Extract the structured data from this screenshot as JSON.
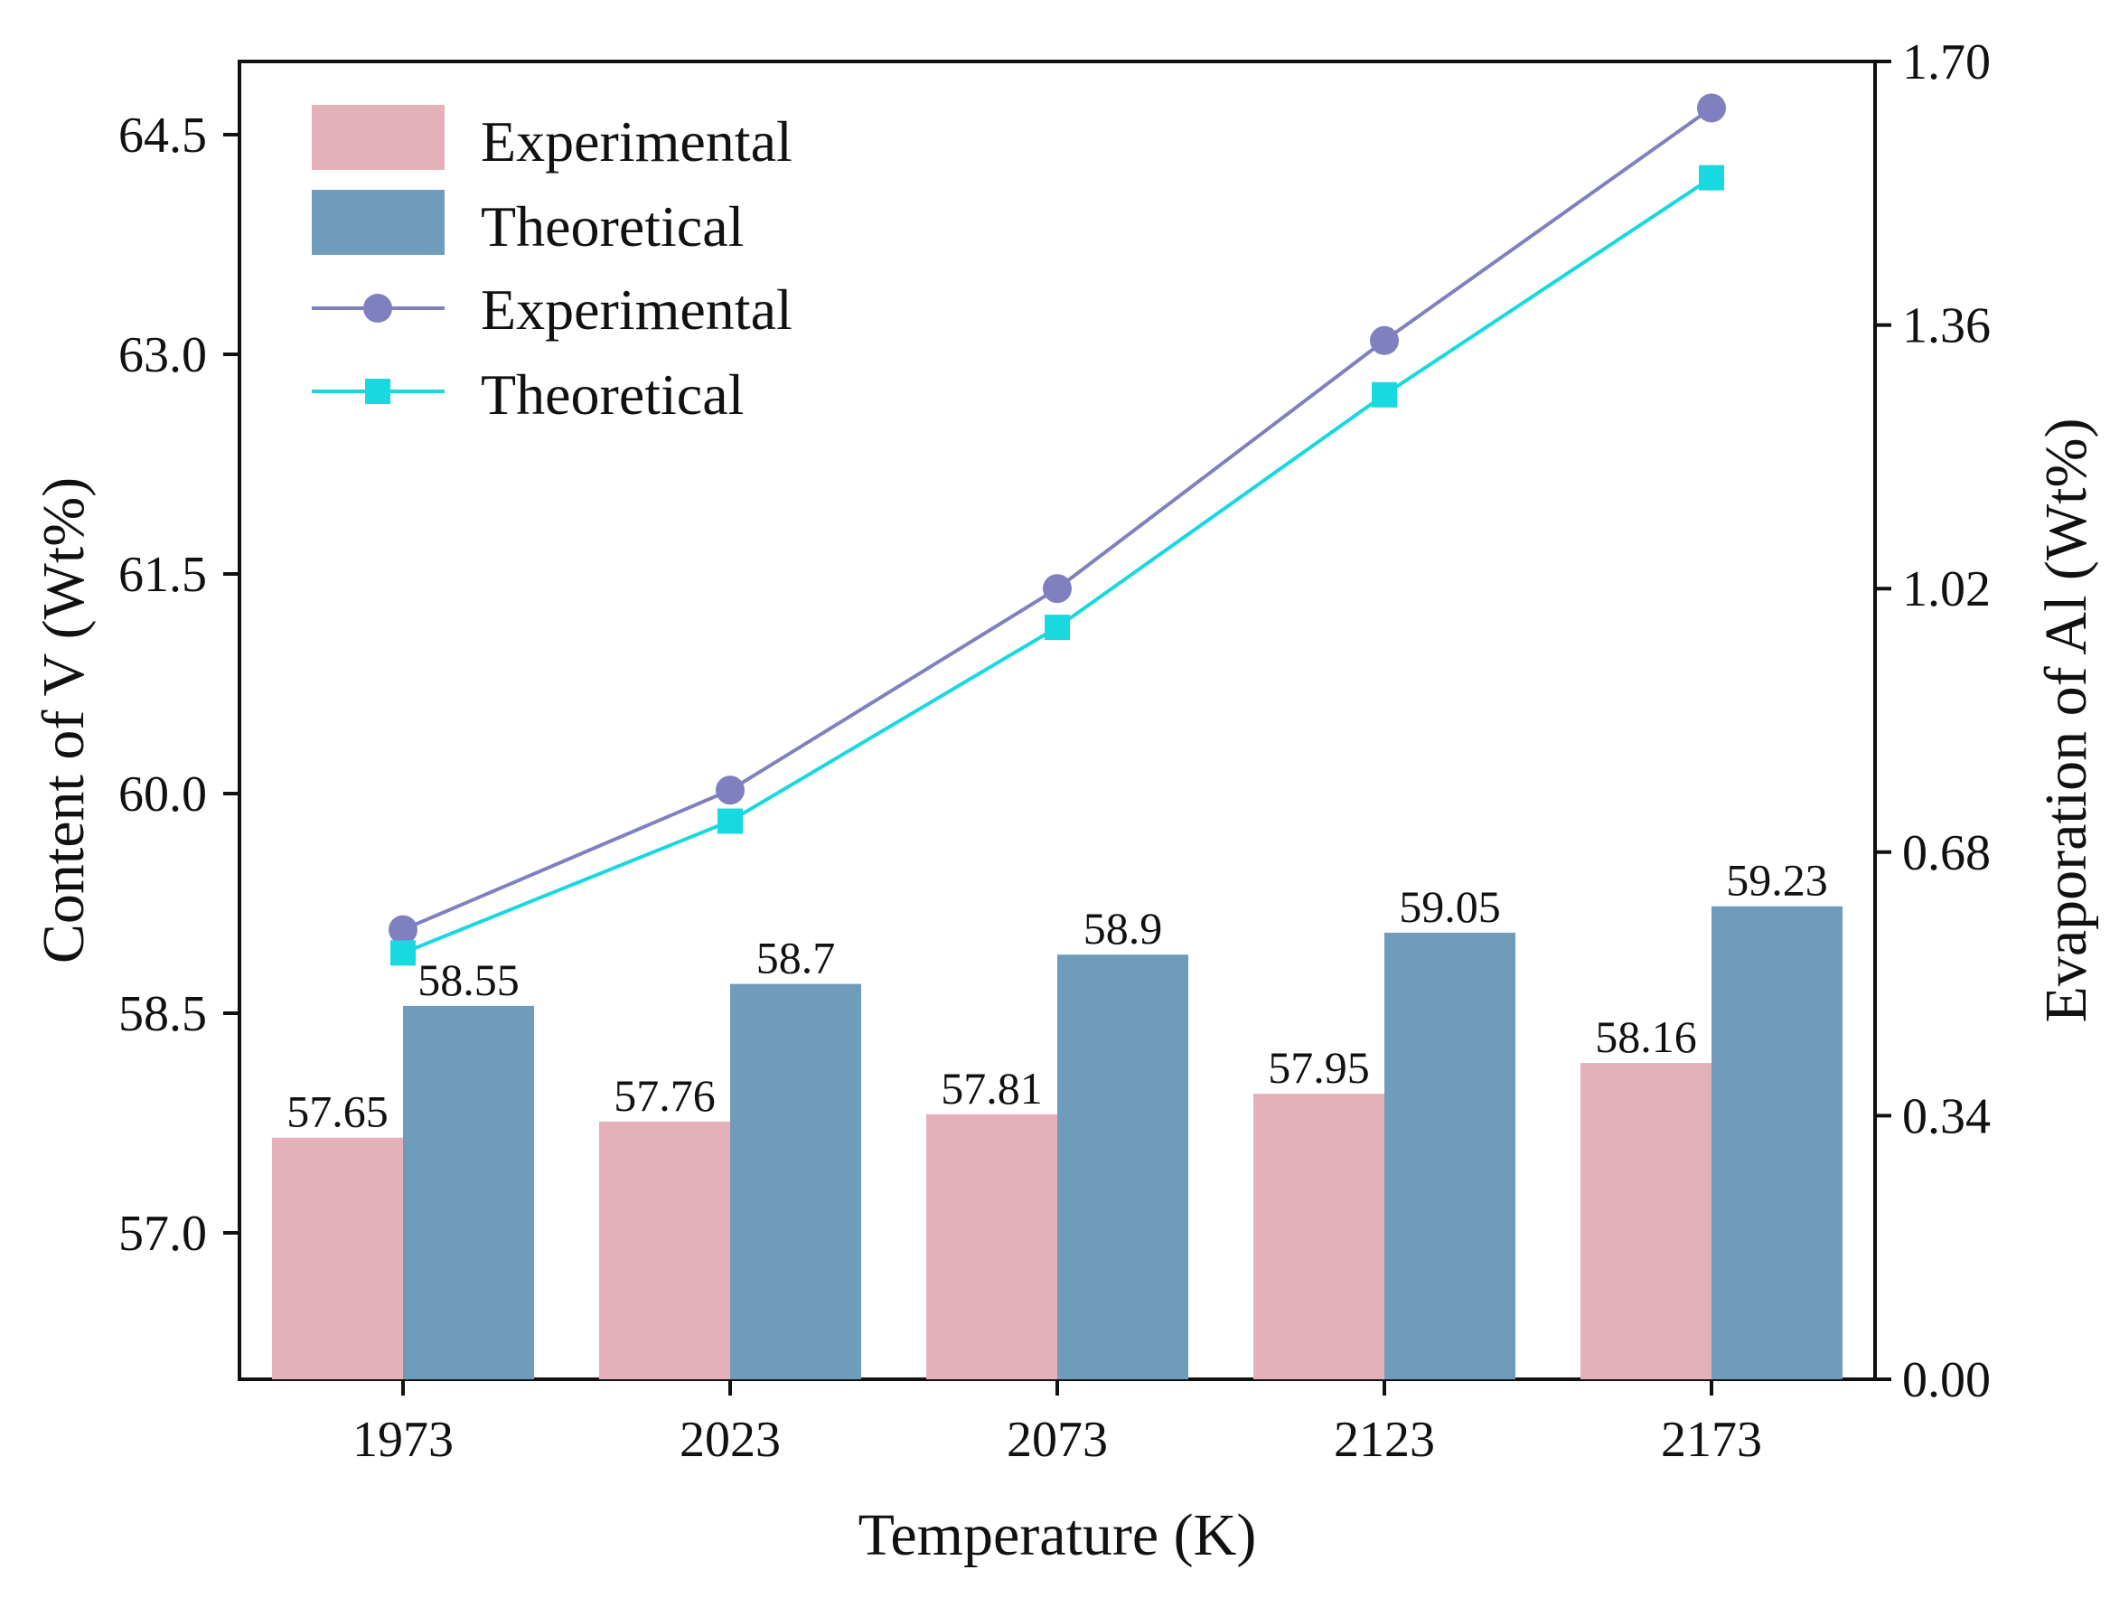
{
  "chart_data": {
    "type": "bar+line",
    "xlabel": "Temperature (K)",
    "ylabel_left": "Content of  V (Wt%)",
    "ylabel_right": "Evaporation of  Al (Wt%)",
    "categories": [
      "1973",
      "2023",
      "2073",
      "2123",
      "2173"
    ],
    "left_axis": {
      "ylim": [
        56.0,
        65.0
      ],
      "ticks": [
        57.0,
        58.5,
        60.0,
        61.5,
        63.0,
        64.5
      ],
      "tick_labels": [
        "57.0",
        "58.5",
        "60.0",
        "61.5",
        "63.0",
        "64.5"
      ]
    },
    "right_axis": {
      "ylim": [
        0.0,
        1.7
      ],
      "ticks": [
        0.0,
        0.34,
        0.68,
        1.02,
        1.36,
        1.7
      ],
      "tick_labels": [
        "0.00",
        "0.34",
        "0.68",
        "1.02",
        "1.36",
        "1.70"
      ]
    },
    "bar_series": [
      {
        "name": "Experimental",
        "color": "#e4b0ba",
        "values": [
          57.65,
          57.76,
          57.81,
          57.95,
          58.16
        ],
        "labels": [
          "57.65",
          "57.76",
          "57.81",
          "57.95",
          "58.16"
        ]
      },
      {
        "name": "Theoretical",
        "color": "#6e9cba",
        "values": [
          58.55,
          58.7,
          58.9,
          59.05,
          59.23
        ],
        "labels": [
          "58.55",
          "58.7",
          "58.9",
          "59.05",
          "59.23"
        ]
      }
    ],
    "line_series": [
      {
        "name": "Experimental",
        "color": "#8080c0",
        "marker": "circle",
        "values": [
          0.58,
          0.76,
          1.02,
          1.34,
          1.64
        ]
      },
      {
        "name": "Theoretical",
        "color": "#18d8e0",
        "marker": "square",
        "values": [
          0.55,
          0.72,
          0.97,
          1.27,
          1.55
        ]
      }
    ],
    "legend": {
      "position": "top-left",
      "entries": [
        "Experimental",
        "Theoretical",
        "Experimental",
        "Theoretical"
      ]
    }
  }
}
